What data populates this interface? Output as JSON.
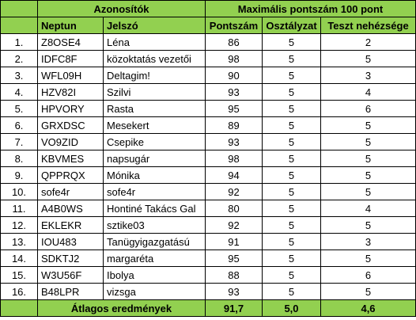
{
  "header": {
    "group1": "Azonosítók",
    "group2": "Maximális pontszám 100 pont"
  },
  "columns": {
    "neptun": "Neptun",
    "jelszo": "Jelszó",
    "pontszam": "Pontszám",
    "osztalyzat": "Osztályzat",
    "teszt": "Teszt nehézsége"
  },
  "rows": [
    {
      "n": "1.",
      "neptun": "Z8OSE4",
      "jelszo": "Léna",
      "pont": "86",
      "oszt": "5",
      "teszt": "2"
    },
    {
      "n": "2.",
      "neptun": "IDFC8F",
      "jelszo": "közoktatás vezetői",
      "pont": "98",
      "oszt": "5",
      "teszt": "5"
    },
    {
      "n": "3.",
      "neptun": "WFL09H",
      "jelszo": "Deltagim!",
      "pont": "90",
      "oszt": "5",
      "teszt": "3"
    },
    {
      "n": "4.",
      "neptun": "HZV82I",
      "jelszo": "Szilvi",
      "pont": "93",
      "oszt": "5",
      "teszt": "4"
    },
    {
      "n": "5.",
      "neptun": "HPVORY",
      "jelszo": "Rasta",
      "pont": "95",
      "oszt": "5",
      "teszt": "6"
    },
    {
      "n": "6.",
      "neptun": "GRXDSC",
      "jelszo": "Mesekert",
      "pont": "89",
      "oszt": "5",
      "teszt": "5"
    },
    {
      "n": "7.",
      "neptun": "VO9ZID",
      "jelszo": "Csepike",
      "pont": "93",
      "oszt": "5",
      "teszt": "5"
    },
    {
      "n": "8.",
      "neptun": "KBVMES",
      "jelszo": "napsugár",
      "pont": "98",
      "oszt": "5",
      "teszt": "5"
    },
    {
      "n": "9.",
      "neptun": "QPPRQX",
      "jelszo": "Mónika",
      "pont": "94",
      "oszt": "5",
      "teszt": "5"
    },
    {
      "n": "10.",
      "neptun": "sofe4r",
      "jelszo": "sofe4r",
      "pont": "92",
      "oszt": "5",
      "teszt": "5"
    },
    {
      "n": "11.",
      "neptun": "A4B0WS",
      "jelszo": "Hontiné Takács Gal",
      "pont": "80",
      "oszt": "5",
      "teszt": "4"
    },
    {
      "n": "12.",
      "neptun": "EKLEKR",
      "jelszo": "sztike03",
      "pont": "92",
      "oszt": "5",
      "teszt": "5"
    },
    {
      "n": "13.",
      "neptun": "IOU483",
      "jelszo": "Tanügyigazgatású",
      "pont": "91",
      "oszt": "5",
      "teszt": "3"
    },
    {
      "n": "14.",
      "neptun": "SDKTJ2",
      "jelszo": "margaréta",
      "pont": "95",
      "oszt": "5",
      "teszt": "5"
    },
    {
      "n": "15.",
      "neptun": "W3U56F",
      "jelszo": "Ibolya",
      "pont": "88",
      "oszt": "5",
      "teszt": "6"
    },
    {
      "n": "16.",
      "neptun": "B48LPR",
      "jelszo": "vizsga",
      "pont": "93",
      "oszt": "5",
      "teszt": "5"
    }
  ],
  "footer": {
    "label": "Átlagos eredmények",
    "pont": "91,7",
    "oszt": "5,0",
    "teszt": "4,6"
  },
  "colors": {
    "header_bg": "#92d050",
    "border": "#000000"
  }
}
